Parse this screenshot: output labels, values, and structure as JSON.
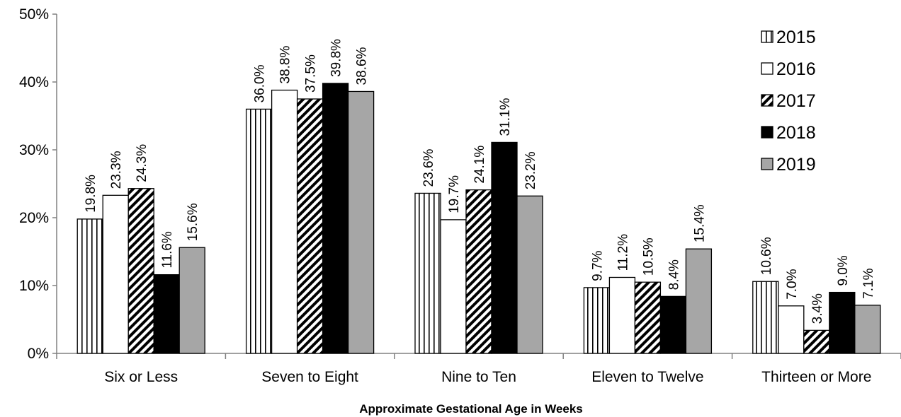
{
  "chart_data": {
    "type": "bar",
    "title": "",
    "xlabel": "Approximate Gestational Age in Weeks",
    "ylabel": "",
    "ylim": [
      0,
      50
    ],
    "yticks": [
      0,
      10,
      20,
      30,
      40,
      50
    ],
    "ytick_labels": [
      "0%",
      "10%",
      "20%",
      "30%",
      "40%",
      "50%"
    ],
    "categories": [
      "Six or Less",
      "Seven to Eight",
      "Nine to Ten",
      "Eleven to Twelve",
      "Thirteen or More"
    ],
    "series": [
      {
        "name": "2015",
        "pattern": "vertical-lines",
        "values": [
          19.8,
          36.0,
          23.6,
          9.7,
          10.6
        ],
        "labels": [
          "19.8%",
          "36.0%",
          "23.6%",
          "9.7%",
          "10.6%"
        ]
      },
      {
        "name": "2016",
        "pattern": "white",
        "values": [
          23.3,
          38.8,
          19.7,
          11.2,
          7.0
        ],
        "labels": [
          "23.3%",
          "38.8%",
          "19.7%",
          "11.2%",
          "7.0%"
        ]
      },
      {
        "name": "2017",
        "pattern": "diagonal-stripes",
        "values": [
          24.3,
          37.5,
          24.1,
          10.5,
          3.4
        ],
        "labels": [
          "24.3%",
          "37.5%",
          "24.1%",
          "10.5%",
          "3.4%"
        ]
      },
      {
        "name": "2018",
        "pattern": "black",
        "values": [
          11.6,
          39.8,
          31.1,
          8.4,
          9.0
        ],
        "labels": [
          "11.6%",
          "39.8%",
          "31.1%",
          "8.4%",
          "9.0%"
        ]
      },
      {
        "name": "2019",
        "pattern": "gray",
        "values": [
          15.6,
          38.6,
          23.2,
          15.4,
          7.1
        ],
        "labels": [
          "15.6%",
          "38.6%",
          "23.2%",
          "15.4%",
          "7.1%"
        ]
      }
    ],
    "legend_position": "top-right",
    "grid": false,
    "colors": {
      "black": "#000000",
      "gray": "#a6a6a6",
      "white": "#ffffff"
    }
  }
}
